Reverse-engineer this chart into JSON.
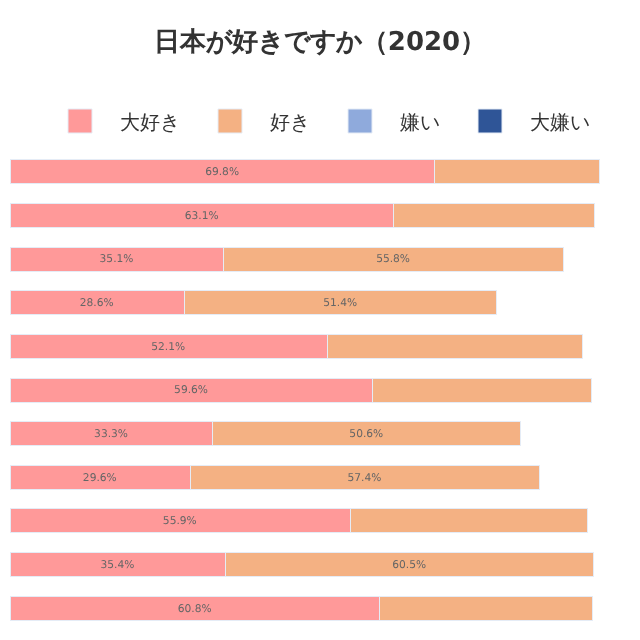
{
  "chart_data": {
    "type": "bar",
    "orientation": "horizontal",
    "stacked": true,
    "title": "日本が好きですか（2020）",
    "categories": [
      null,
      null,
      null,
      null,
      null,
      null,
      null,
      null,
      null,
      null,
      null
    ],
    "tick_labels": false,
    "legend": "top",
    "series": [
      {
        "name": "大好き",
        "color": "#ff9999",
        "values": [
          69.8,
          63.1,
          35.1,
          28.6,
          52.1,
          59.6,
          33.3,
          29.6,
          55.9,
          35.4,
          60.8
        ],
        "value_labels": [
          "69.8%",
          "63.1%",
          "35.1%",
          "28.6%",
          "52.1%",
          "59.6%",
          "33.3%",
          "29.6%",
          "55.9%",
          "35.4%",
          "60.8%"
        ]
      },
      {
        "name": "好き",
        "color": "#f4b183",
        "values": [
          27,
          33,
          55.8,
          51.4,
          42,
          36,
          50.6,
          57.4,
          39,
          60.5,
          35
        ],
        "value_labels": [
          null,
          null,
          "55.8%",
          "51.4%",
          null,
          null,
          "50.6%",
          "57.4%",
          null,
          "60.5%",
          null
        ]
      },
      {
        "name": "嫌い",
        "color": "#8faadc",
        "values": [
          null,
          null,
          null,
          null,
          null,
          null,
          null,
          null,
          null,
          null,
          null
        ]
      },
      {
        "name": "大嫌い",
        "color": "#2f5597",
        "values": [
          null,
          null,
          null,
          null,
          null,
          null,
          null,
          null,
          null,
          null,
          null
        ]
      }
    ]
  }
}
